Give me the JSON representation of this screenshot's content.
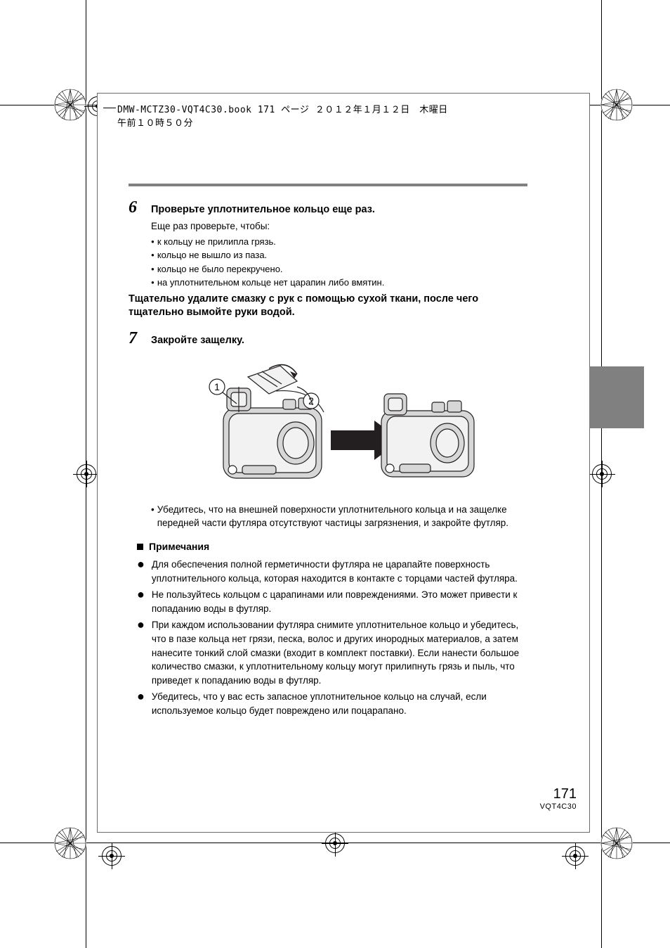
{
  "header": "DMW-MCTZ30-VQT4C30.book  171 ページ  ２０１２年１月１２日　木曜日　午前１０時５０分",
  "step6": {
    "num": "6",
    "title": "Проверьте уплотнительное кольцо еще раз.",
    "intro": "Еще раз проверьте, чтобы:",
    "bullets": [
      "к кольцу не прилипла грязь.",
      "кольцо не вышло из паза.",
      "кольцо не было перекручено.",
      "на уплотнительном кольце нет царапин либо вмятин."
    ],
    "bold_para": "Тщательно удалите смазку с рук с помощью сухой ткани, после чего тщательно вымойте руки водой."
  },
  "step7": {
    "num": "7",
    "title": "Закройте защелку.",
    "after_figure": "Убедитесь, что на внешней поверхности уплотнительного кольца и на защелке передней части футляра отсутствуют частицы загрязнения, и закройте футляр."
  },
  "notes": {
    "heading": "Примечания",
    "items": [
      "Для обеспечения полной герметичности футляра не царапайте поверхность уплотнительного кольца, которая находится в контакте с торцами частей футляра.",
      "Не пользуйтесь кольцом с царапинами или повреждениями. Это может привести к попаданию воды в футляр.",
      "При каждом использовании футляра снимите уплотнительное кольцо и убедитесь, что в пазе кольца нет грязи, песка, волос и других инородных материалов, а затем нанесите тонкий слой смазки (входит в комплект поставки). Если нанести большое количество смазки, к уплотнительному кольцу могут прилипнуть грязь и пыль, что приведет к попаданию воды в футляр.",
      "Убедитесь, что у вас есть запасное уплотнительное кольцо на случай, если используемое кольцо будет повреждено или поцарапано."
    ]
  },
  "page": {
    "number": "171",
    "code": "VQT4C30"
  },
  "figure": {
    "callouts": [
      "1",
      "2"
    ],
    "stroke": "#231f20",
    "fill_case": "#d7d7d7",
    "fill_light": "#f2f2f2"
  },
  "colors": {
    "sep_bar": "#808080",
    "side_tab": "#808080",
    "outline": "#6b6b6b"
  }
}
